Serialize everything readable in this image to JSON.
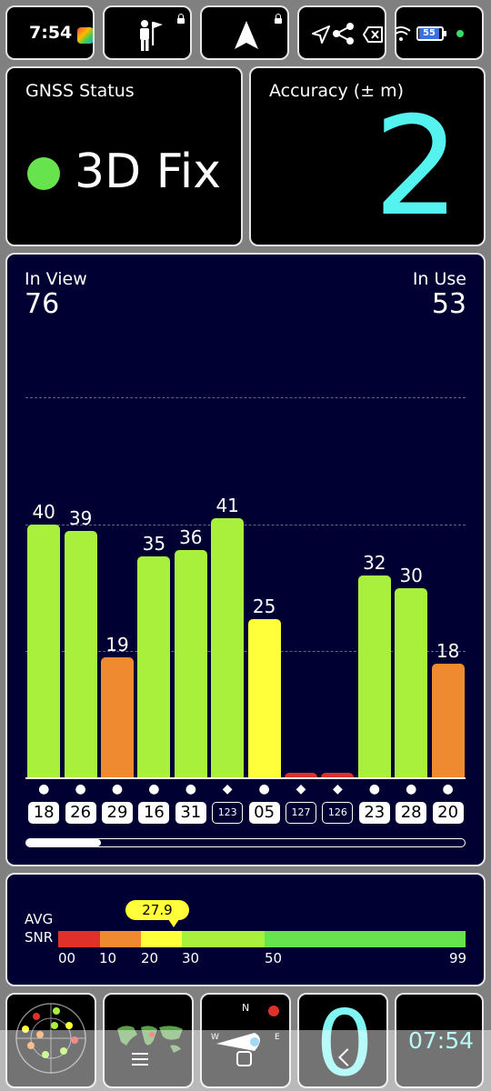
{
  "status_bar": {
    "time": "7:54",
    "battery": "55"
  },
  "gnss_status": {
    "title": "GNSS Status",
    "value": "3D Fix",
    "indicator_color": "#66e34d"
  },
  "accuracy": {
    "title": "Accuracy (± m)",
    "value": "2"
  },
  "satellites": {
    "in_view_label": "In View",
    "in_view": "76",
    "in_use_label": "In Use",
    "in_use": "53",
    "bars": [
      {
        "snr": 40,
        "prn": "18",
        "symbol": "●",
        "color": "#a8f03c",
        "label": "40",
        "outline": false
      },
      {
        "snr": 39,
        "prn": "26",
        "symbol": "●",
        "color": "#a8f03c",
        "label": "39",
        "outline": false
      },
      {
        "snr": 19,
        "prn": "29",
        "symbol": "●",
        "color": "#f08a30",
        "label": "19",
        "outline": false
      },
      {
        "snr": 35,
        "prn": "16",
        "symbol": "●",
        "color": "#a8f03c",
        "label": "35",
        "outline": false
      },
      {
        "snr": 36,
        "prn": "31",
        "symbol": "●",
        "color": "#a8f03c",
        "label": "36",
        "outline": false
      },
      {
        "snr": 41,
        "prn": "123",
        "symbol": "◆",
        "color": "#a8f03c",
        "label": "41",
        "outline": true
      },
      {
        "snr": 25,
        "prn": "05",
        "symbol": "●",
        "color": "#ffff3a",
        "label": "25",
        "outline": false
      },
      {
        "snr": 0.7,
        "prn": "127",
        "symbol": "◆",
        "color": "#e0302a",
        "label": "",
        "outline": true
      },
      {
        "snr": 0.7,
        "prn": "126",
        "symbol": "◆",
        "color": "#e0302a",
        "label": "",
        "outline": true
      },
      {
        "snr": 32,
        "prn": "23",
        "symbol": "●",
        "color": "#a8f03c",
        "label": "32",
        "outline": false
      },
      {
        "snr": 30,
        "prn": "28",
        "symbol": "●",
        "color": "#a8f03c",
        "label": "30",
        "outline": false
      },
      {
        "snr": 18,
        "prn": "20",
        "symbol": "●",
        "color": "#f08a30",
        "label": "18",
        "outline": false
      }
    ],
    "scroll_position": 0.17
  },
  "avg_snr": {
    "label_line1": "AVG",
    "label_line2": "SNR",
    "value": "27.9",
    "ticks": [
      "00",
      "10",
      "20",
      "30",
      "50",
      "99"
    ]
  },
  "bottom": {
    "fix_count": "0",
    "clock": "07:54",
    "compass_n": "N",
    "compass_e": "E",
    "compass_w": "W"
  }
}
